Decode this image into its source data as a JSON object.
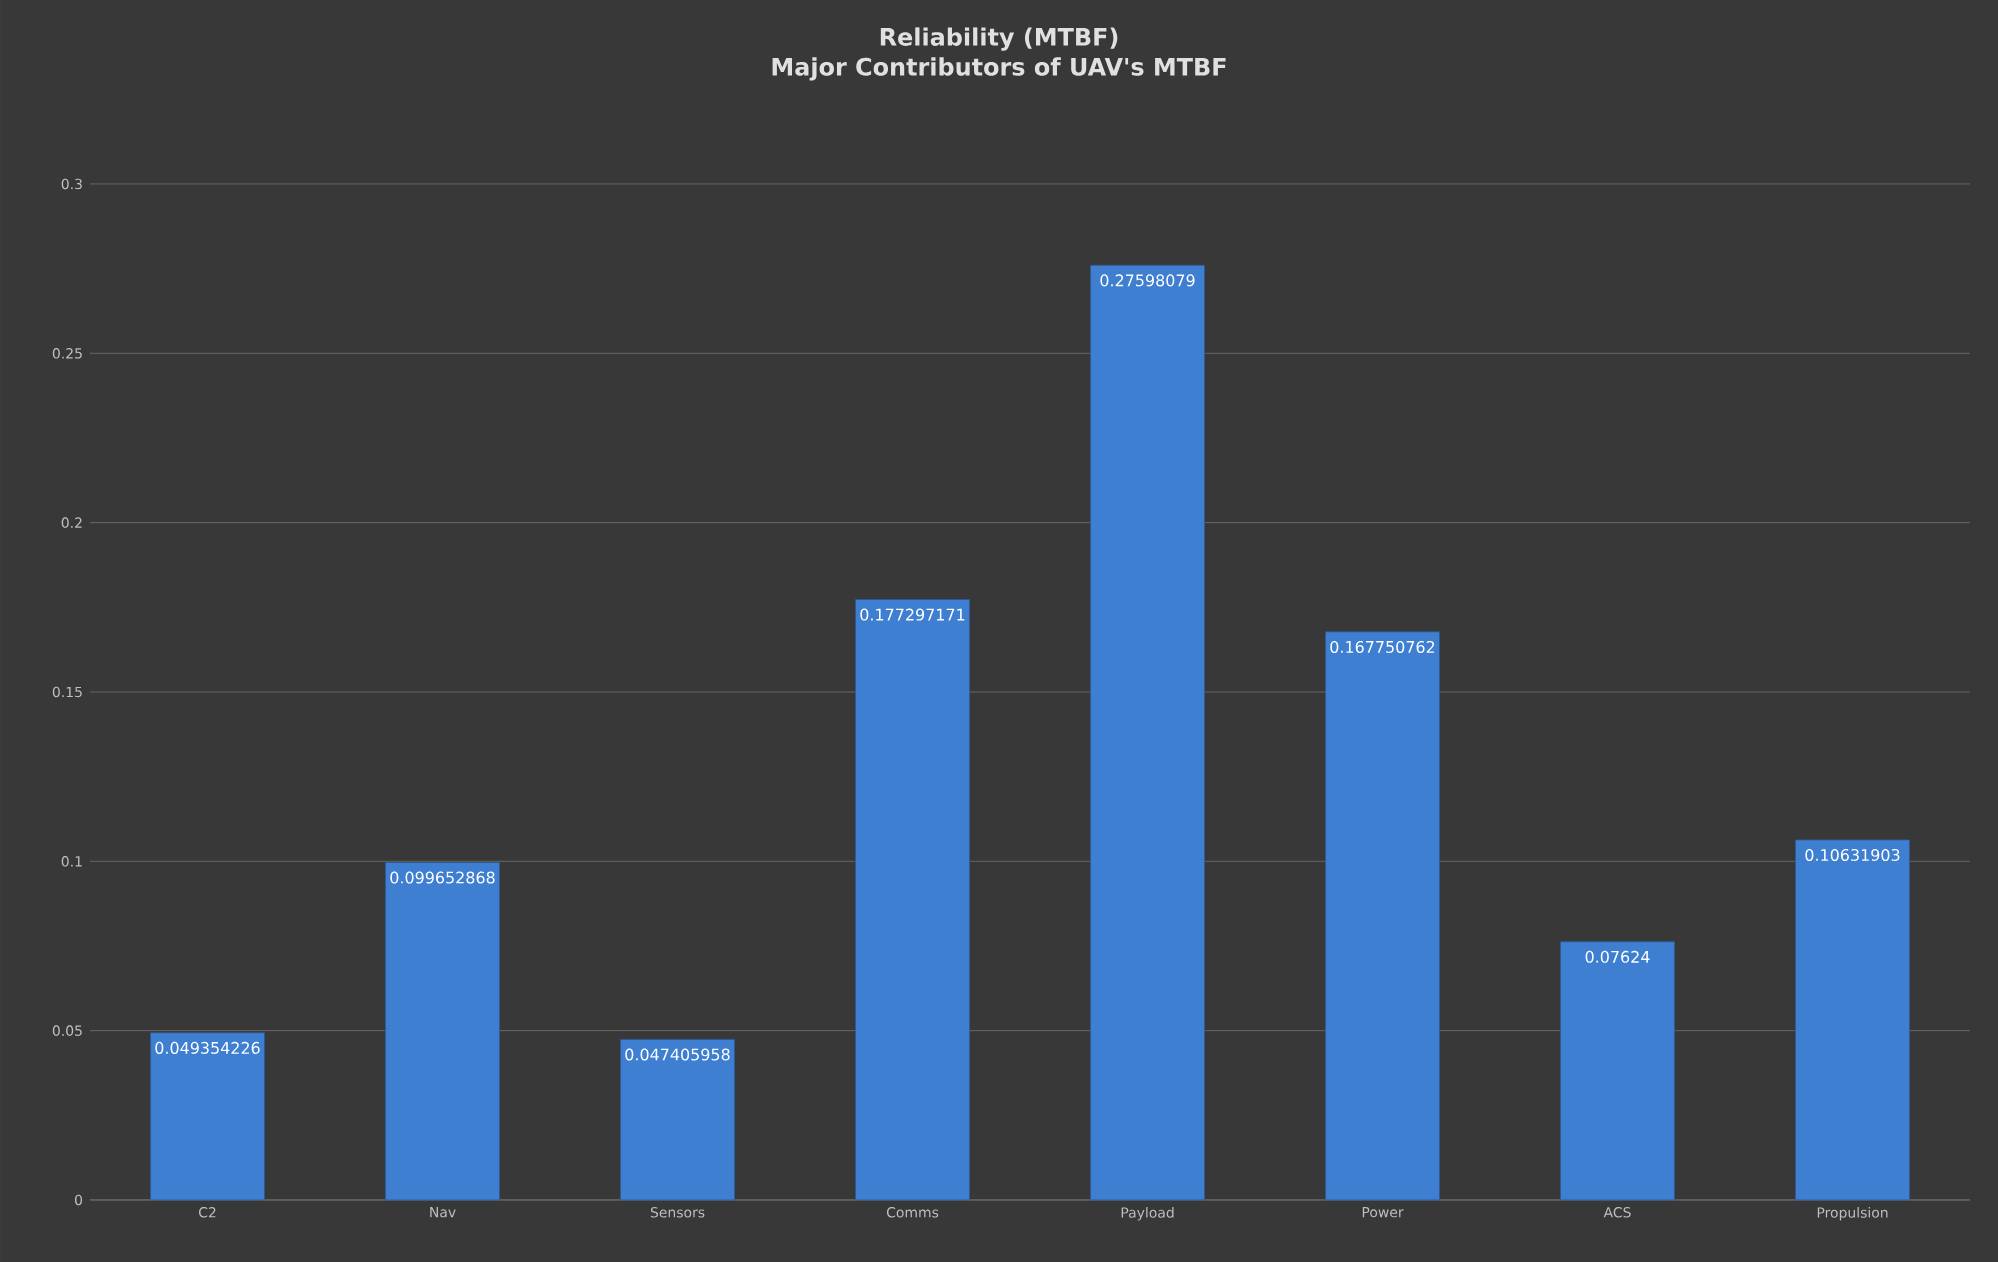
{
  "chart_data": {
    "type": "bar",
    "title": "Reliability (MTBF)",
    "subtitle": "Major Contributors of UAV's MTBF",
    "categories": [
      "C2",
      "Nav",
      "Sensors",
      "Comms",
      "Payload",
      "Power",
      "ACS",
      "Propulsion"
    ],
    "values": [
      0.049354226,
      0.099652868,
      0.047405958,
      0.177297171,
      0.27598079,
      0.167750762,
      0.07624,
      0.10631903
    ],
    "color": "#3f7fd2",
    "ylim": [
      0,
      0.3
    ],
    "yticks": [
      0,
      0.05,
      0.1,
      0.15,
      0.2,
      0.25,
      0.3
    ],
    "grid": "y",
    "data_labels": true
  }
}
